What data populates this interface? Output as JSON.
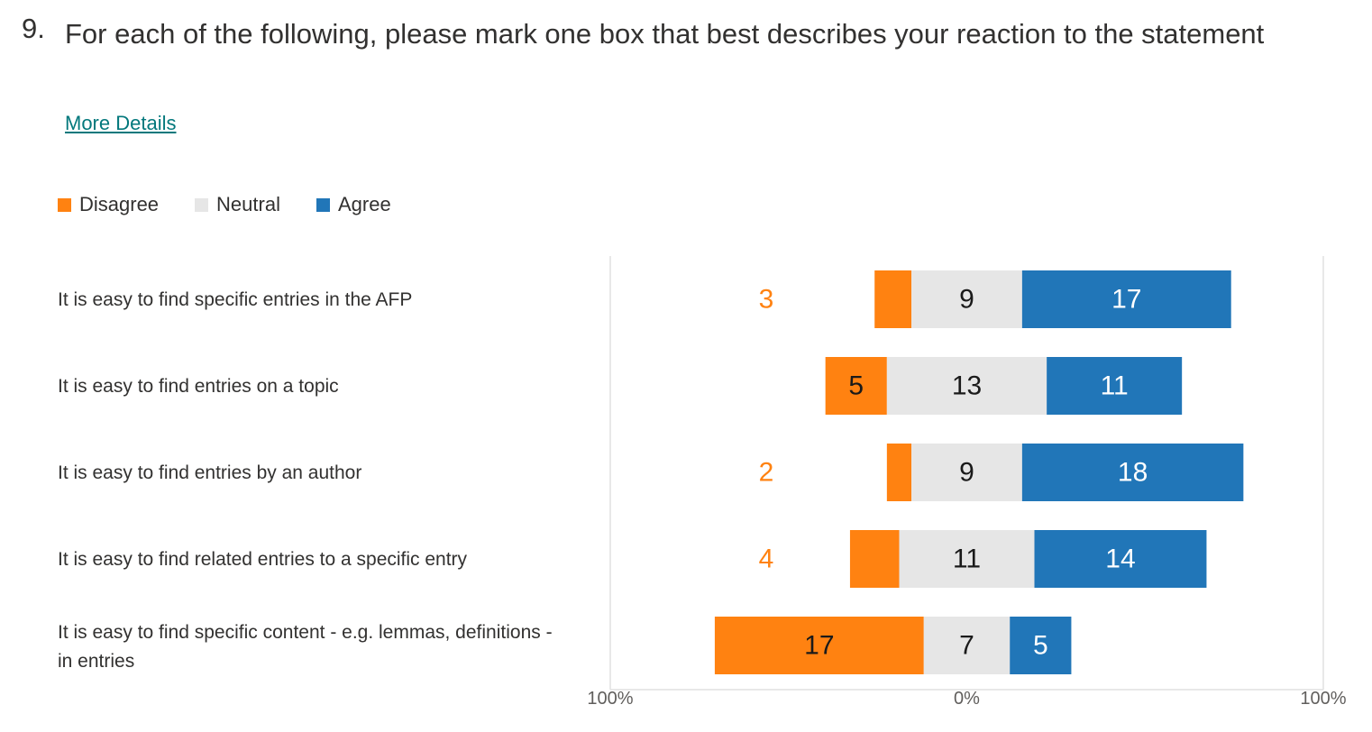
{
  "question": {
    "number": "9.",
    "title": "For each of the following, please mark one box that best describes your reaction to the statement",
    "more_details": "More Details"
  },
  "colors": {
    "disagree": "#ff8211",
    "neutral": "#e6e6e6",
    "agree": "#2176b8",
    "axis": "#e1e1e1"
  },
  "chart_data": {
    "type": "bar",
    "subtype": "diverging-stacked-horizontal",
    "legend": [
      "Disagree",
      "Neutral",
      "Agree"
    ],
    "legend_position": "top-left",
    "categories": [
      "It is easy to find specific entries in the AFP",
      "It is easy to find entries on a topic",
      "It is easy to find entries by an author",
      "It is easy to find related entries to a specific entry",
      "It is easy to find specific content - e.g. lemmas, definitions - in entries"
    ],
    "series": [
      {
        "name": "Disagree",
        "values": [
          3,
          5,
          2,
          4,
          17
        ]
      },
      {
        "name": "Neutral",
        "values": [
          9,
          13,
          9,
          11,
          7
        ]
      },
      {
        "name": "Agree",
        "values": [
          17,
          11,
          18,
          14,
          5
        ]
      }
    ],
    "x_tick_labels": [
      "100%",
      "0%",
      "100%"
    ],
    "xlim": [
      -100,
      100
    ]
  }
}
